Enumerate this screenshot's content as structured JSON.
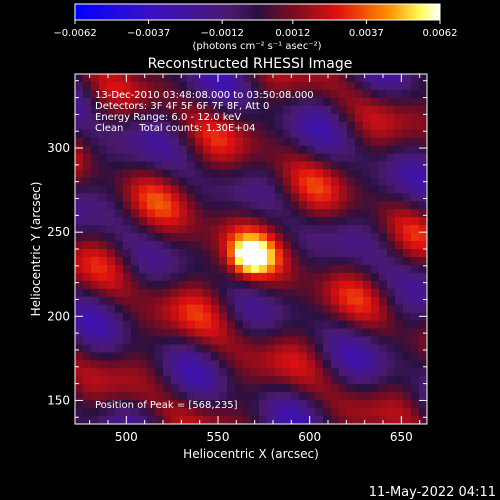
{
  "chart_data": {
    "type": "heatmap",
    "title": "Reconstructed RHESSI Image",
    "xlabel": "Heliocentric X (arcsec)",
    "ylabel": "Heliocentric Y (arcsec)",
    "xlim": [
      472,
      664
    ],
    "ylim": [
      136,
      344
    ],
    "x_ticks": [
      500,
      550,
      600,
      650
    ],
    "y_ticks": [
      150,
      200,
      250,
      300
    ],
    "colorbar": {
      "label": "(photons cm⁻² s⁻¹ asec⁻²)",
      "range": [
        -0.0062,
        0.0062
      ],
      "tick_values": [
        -0.0062,
        -0.0037,
        -0.0012,
        0.0012,
        0.0037,
        0.0062
      ],
      "tick_labels": [
        "−0.0062",
        "−0.0037",
        "−0.0012",
        "0.0012",
        "0.0037",
        "0.0062"
      ]
    },
    "info_lines": [
      "13-Dec-2010 03:48:08.000 to 03:50:08.000",
      "Detectors: 3F 4F 5F 6F 7F 8F, Att 0",
      "Energy Range: 6.0 - 12.0 keV",
      "Clean     Total counts: 1.30E+04"
    ],
    "peak_label": "Position of Peak = [568,235]",
    "peak": {
      "x": 568,
      "y": 235,
      "value": 0.0062
    },
    "colors": {
      "negative_min": "#0000ff",
      "zero": "#2a1040",
      "positive_max": "#ffffff"
    }
  },
  "footer": {
    "date": "11-May-2022 04:11"
  }
}
